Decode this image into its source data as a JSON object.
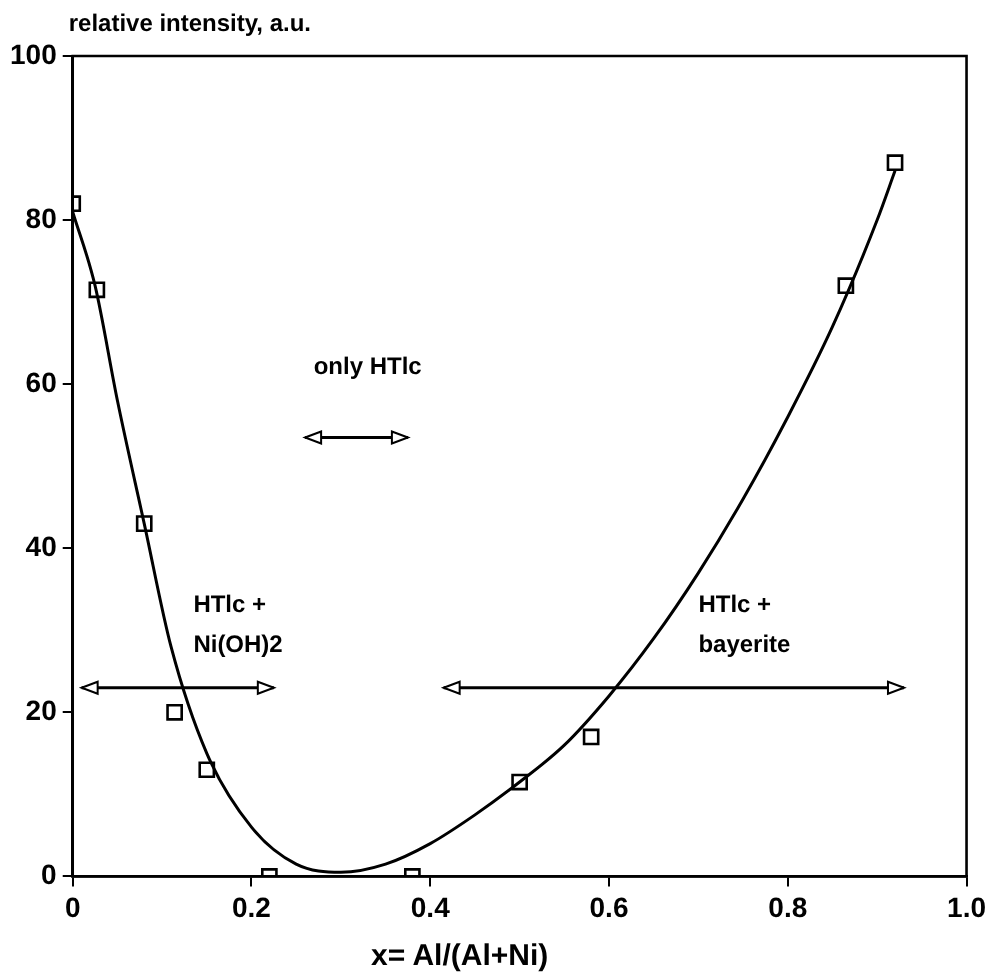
{
  "chart_data": {
    "type": "scatter",
    "ylabel": "relative intensity, a.u.",
    "xlabel": "x= Al/(Al+Ni)",
    "xlim": [
      0,
      1
    ],
    "xticks": [
      0,
      0.2,
      0.4,
      0.6,
      0.8,
      {
        "value": 1,
        "label": "1.0"
      }
    ],
    "ylim": [
      0,
      100
    ],
    "yticks": [
      0,
      20,
      40,
      60,
      80,
      100
    ],
    "grid": false,
    "legend": false,
    "annotations": [
      "only HTlc",
      "HTlc +\nNi(OH)2",
      "HTlc +\nbayerite"
    ],
    "series": [
      {
        "color": "#000000",
        "marker": "square",
        "x": [
          0,
          0.027,
          0.08,
          0.114,
          0.15,
          0.22,
          0.38,
          0.5,
          0.58,
          0.865,
          0.92
        ],
        "values": [
          82,
          71.5,
          43,
          20,
          13,
          0,
          0,
          11.5,
          17,
          72,
          87
        ]
      },
      {
        "type": "line",
        "color": "#000000",
        "marker": "none",
        "line_style": "solid",
        "x": [
          0,
          0.025,
          0.05,
          0.08,
          0.11,
          0.15,
          0.2,
          0.25,
          0.3,
          0.35,
          0.4,
          0.45,
          0.5,
          0.55,
          0.6,
          0.65,
          0.7,
          0.75,
          0.8,
          0.85,
          0.9,
          0.92
        ],
        "values": [
          81,
          72,
          58,
          43,
          28,
          15,
          6,
          1.5,
          0.5,
          1.5,
          4,
          7.5,
          11.5,
          16,
          22,
          29,
          37,
          46,
          56,
          67,
          80,
          86
        ]
      }
    ]
  }
}
